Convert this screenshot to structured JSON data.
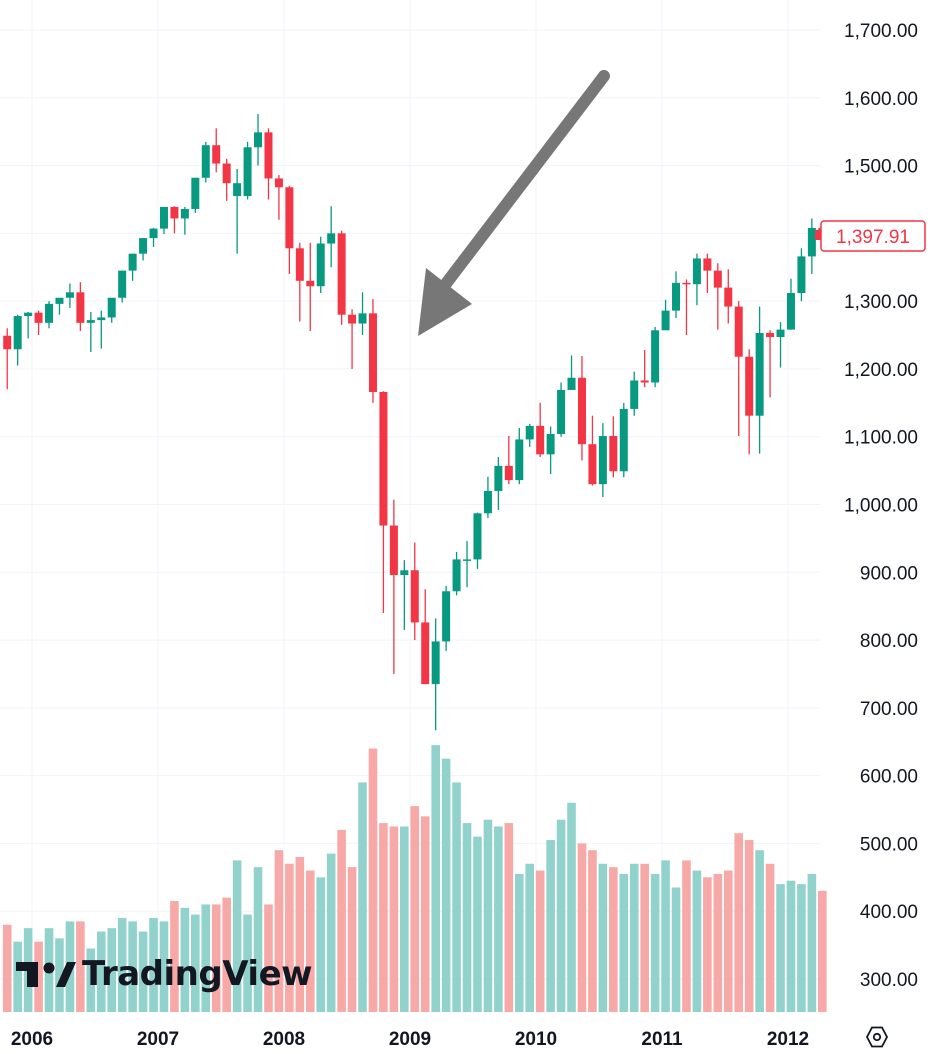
{
  "chart_data": {
    "type": "candlestick",
    "interval": "monthly",
    "up_color": "#089981",
    "down_color": "#f23645",
    "volume_up_color": "#92d2cc",
    "volume_down_color": "#f7a9a7",
    "y_ticks": [
      "1,700.00",
      "1,600.00",
      "1,500.00",
      "1,400.00",
      "1,300.00",
      "1,200.00",
      "1,100.00",
      "1,000.00",
      "900.00",
      "800.00",
      "700.00",
      "600.00",
      "500.00",
      "400.00",
      "300.00"
    ],
    "y_tick_values": [
      1700,
      1600,
      1500,
      1400,
      1300,
      1200,
      1100,
      1000,
      900,
      800,
      700,
      600,
      500,
      400,
      300
    ],
    "x_ticks": [
      "2006",
      "2007",
      "2008",
      "2009",
      "2010",
      "2011",
      "2012"
    ],
    "last_price": "1,397.91",
    "grid": true,
    "annotation": "arrow pointing to the 2009 low",
    "candles": [
      [
        1249,
        1260,
        1170,
        1229,
        "down"
      ],
      [
        1229,
        1280,
        1205,
        1278,
        "up"
      ],
      [
        1278,
        1284,
        1245,
        1283,
        "up"
      ],
      [
        1283,
        1286,
        1250,
        1268,
        "down"
      ],
      [
        1268,
        1300,
        1260,
        1296,
        "up"
      ],
      [
        1296,
        1304,
        1280,
        1305,
        "up"
      ],
      [
        1305,
        1326,
        1290,
        1313,
        "up"
      ],
      [
        1313,
        1328,
        1256,
        1268,
        "down"
      ],
      [
        1268,
        1284,
        1225,
        1272,
        "up"
      ],
      [
        1272,
        1286,
        1230,
        1276,
        "up"
      ],
      [
        1276,
        1304,
        1268,
        1305,
        "up"
      ],
      [
        1305,
        1345,
        1298,
        1345,
        "up"
      ],
      [
        1345,
        1370,
        1330,
        1370,
        "up"
      ],
      [
        1370,
        1392,
        1360,
        1393,
        "up"
      ],
      [
        1393,
        1408,
        1380,
        1407,
        "up"
      ],
      [
        1407,
        1436,
        1399,
        1439,
        "up"
      ],
      [
        1439,
        1440,
        1400,
        1422,
        "down"
      ],
      [
        1422,
        1439,
        1398,
        1436,
        "up"
      ],
      [
        1436,
        1482,
        1430,
        1482,
        "up"
      ],
      [
        1482,
        1535,
        1475,
        1530,
        "up"
      ],
      [
        1530,
        1555,
        1490,
        1503,
        "down"
      ],
      [
        1503,
        1510,
        1448,
        1474,
        "down"
      ],
      [
        1474,
        1495,
        1370,
        1455,
        "up"
      ],
      [
        1455,
        1535,
        1450,
        1527,
        "up"
      ],
      [
        1527,
        1576,
        1500,
        1549,
        "up"
      ],
      [
        1549,
        1555,
        1450,
        1481,
        "down"
      ],
      [
        1481,
        1486,
        1420,
        1468,
        "down"
      ],
      [
        1468,
        1470,
        1340,
        1378,
        "down"
      ],
      [
        1378,
        1386,
        1270,
        1330,
        "down"
      ],
      [
        1330,
        1386,
        1256,
        1322,
        "down"
      ],
      [
        1322,
        1395,
        1312,
        1385,
        "up"
      ],
      [
        1385,
        1440,
        1350,
        1400,
        "up"
      ],
      [
        1400,
        1404,
        1265,
        1280,
        "down"
      ],
      [
        1280,
        1288,
        1200,
        1267,
        "down"
      ],
      [
        1267,
        1313,
        1250,
        1282,
        "up"
      ],
      [
        1282,
        1303,
        1150,
        1166,
        "down"
      ],
      [
        1166,
        1167,
        840,
        969,
        "down"
      ],
      [
        969,
        1007,
        750,
        896,
        "down"
      ],
      [
        896,
        918,
        815,
        903,
        "up"
      ],
      [
        903,
        944,
        800,
        826,
        "down"
      ],
      [
        826,
        875,
        740,
        735,
        "down"
      ],
      [
        735,
        832,
        667,
        798,
        "up"
      ],
      [
        798,
        880,
        784,
        872,
        "up"
      ],
      [
        872,
        930,
        866,
        919,
        "up"
      ],
      [
        919,
        946,
        878,
        919,
        "up"
      ],
      [
        919,
        988,
        905,
        987,
        "up"
      ],
      [
        987,
        1041,
        980,
        1020,
        "up"
      ],
      [
        1020,
        1070,
        992,
        1057,
        "up"
      ],
      [
        1057,
        1101,
        1030,
        1036,
        "down"
      ],
      [
        1036,
        1113,
        1030,
        1096,
        "up"
      ],
      [
        1096,
        1119,
        1085,
        1116,
        "up"
      ],
      [
        1116,
        1150,
        1070,
        1074,
        "down"
      ],
      [
        1074,
        1115,
        1045,
        1104,
        "up"
      ],
      [
        1104,
        1180,
        1100,
        1169,
        "up"
      ],
      [
        1169,
        1220,
        1170,
        1187,
        "up"
      ],
      [
        1187,
        1219,
        1065,
        1089,
        "down"
      ],
      [
        1089,
        1131,
        1028,
        1030,
        "down"
      ],
      [
        1030,
        1120,
        1011,
        1101,
        "up"
      ],
      [
        1101,
        1130,
        1040,
        1049,
        "down"
      ],
      [
        1049,
        1150,
        1040,
        1141,
        "up"
      ],
      [
        1141,
        1196,
        1131,
        1183,
        "up"
      ],
      [
        1183,
        1228,
        1173,
        1180,
        "down"
      ],
      [
        1180,
        1262,
        1173,
        1257,
        "up"
      ],
      [
        1257,
        1302,
        1263,
        1286,
        "up"
      ],
      [
        1286,
        1344,
        1275,
        1327,
        "up"
      ],
      [
        1327,
        1332,
        1250,
        1325,
        "down"
      ],
      [
        1325,
        1370,
        1294,
        1363,
        "up"
      ],
      [
        1363,
        1370,
        1312,
        1345,
        "down"
      ],
      [
        1345,
        1356,
        1258,
        1320,
        "down"
      ],
      [
        1320,
        1347,
        1267,
        1292,
        "down"
      ],
      [
        1292,
        1300,
        1101,
        1218,
        "down"
      ],
      [
        1218,
        1229,
        1074,
        1131,
        "down"
      ],
      [
        1131,
        1292,
        1075,
        1253,
        "up"
      ],
      [
        1253,
        1257,
        1158,
        1247,
        "down"
      ],
      [
        1247,
        1269,
        1202,
        1258,
        "up"
      ],
      [
        1258,
        1333,
        1258,
        1312,
        "up"
      ],
      [
        1312,
        1378,
        1300,
        1366,
        "up"
      ],
      [
        1366,
        1422,
        1340,
        1408,
        "up"
      ],
      [
        1408,
        1414,
        1390,
        1398,
        "down"
      ]
    ],
    "volumes": [
      380,
      355,
      375,
      355,
      375,
      360,
      385,
      385,
      345,
      370,
      375,
      390,
      385,
      370,
      390,
      385,
      415,
      405,
      395,
      410,
      410,
      420,
      475,
      395,
      465,
      410,
      490,
      470,
      480,
      460,
      450,
      485,
      520,
      465,
      590,
      640,
      530,
      525,
      525,
      555,
      540,
      645,
      625,
      590,
      530,
      510,
      535,
      525,
      530,
      455,
      470,
      460,
      505,
      535,
      560,
      500,
      490,
      470,
      465,
      455,
      470,
      470,
      455,
      475,
      435,
      475,
      460,
      450,
      455,
      460,
      515,
      505,
      490,
      470,
      440,
      445,
      440,
      455,
      430
    ],
    "volume_top_label": "",
    "price_min": 300,
    "price_max": 1700
  },
  "watermark": {
    "logo_icon": "tradingview-logo-icon",
    "brand": "TradingView"
  },
  "settings_icon": "settings-hexagon-icon"
}
